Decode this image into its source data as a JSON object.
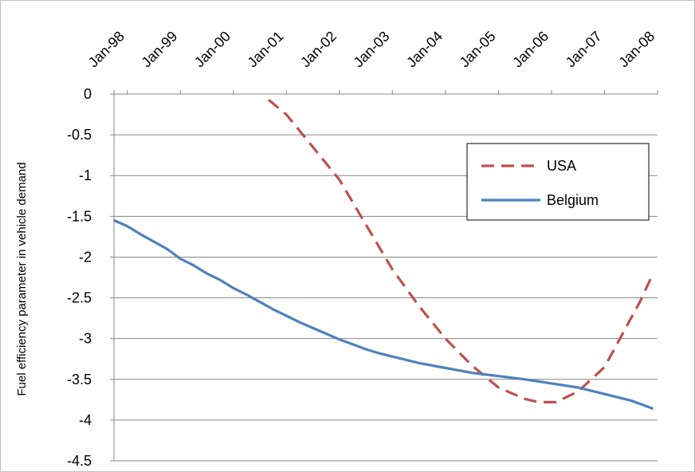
{
  "chart_data": {
    "type": "line",
    "title": "",
    "xlabel": "",
    "ylabel": "Fuel efficiency parameter in vehicle demand",
    "x_tick_labels": [
      "Jan-98",
      "Jan-99",
      "Jan-00",
      "Jan-01",
      "Jan-02",
      "Jan-03",
      "Jan-04",
      "Jan-05",
      "Jan-06",
      "Jan-07",
      "Jan-08"
    ],
    "x_axis_position": "top",
    "xlim": [
      "1997-10",
      "2008-01"
    ],
    "y_tick_labels": [
      "0",
      "-0.5",
      "-1",
      "-1.5",
      "-2",
      "-2.5",
      "-3",
      "-3.5",
      "-4",
      "-4.5"
    ],
    "ylim": [
      -4.5,
      0
    ],
    "grid": "horizontal",
    "legend_position": "right",
    "series": [
      {
        "name": "USA",
        "color": "#c0504d",
        "style": "dashed",
        "points": [
          [
            "2000-09",
            -0.07
          ],
          [
            "2001-01",
            -0.25
          ],
          [
            "2001-04",
            -0.45
          ],
          [
            "2001-07",
            -0.65
          ],
          [
            "2002-01",
            -1.05
          ],
          [
            "2002-07",
            -1.6
          ],
          [
            "2003-01",
            -2.15
          ],
          [
            "2003-07",
            -2.6
          ],
          [
            "2004-01",
            -3.0
          ],
          [
            "2004-07",
            -3.33
          ],
          [
            "2005-01",
            -3.6
          ],
          [
            "2005-07",
            -3.74
          ],
          [
            "2005-10",
            -3.78
          ],
          [
            "2006-02",
            -3.78
          ],
          [
            "2006-07",
            -3.65
          ],
          [
            "2007-01",
            -3.35
          ],
          [
            "2007-05",
            -2.95
          ],
          [
            "2007-09",
            -2.55
          ],
          [
            "2007-12",
            -2.2
          ]
        ]
      },
      {
        "name": "Belgium",
        "color": "#4f81bd",
        "style": "solid",
        "points": [
          [
            "1997-10",
            -1.55
          ],
          [
            "1998-01",
            -1.62
          ],
          [
            "1998-04",
            -1.72
          ],
          [
            "1998-07",
            -1.81
          ],
          [
            "1998-10",
            -1.9
          ],
          [
            "1999-01",
            -2.02
          ],
          [
            "1999-04",
            -2.1
          ],
          [
            "1999-07",
            -2.2
          ],
          [
            "1999-10",
            -2.28
          ],
          [
            "2000-01",
            -2.38
          ],
          [
            "2000-04",
            -2.46
          ],
          [
            "2000-07",
            -2.55
          ],
          [
            "2000-10",
            -2.64
          ],
          [
            "2001-01",
            -2.72
          ],
          [
            "2001-04",
            -2.8
          ],
          [
            "2001-07",
            -2.87
          ],
          [
            "2001-10",
            -2.94
          ],
          [
            "2002-01",
            -3.01
          ],
          [
            "2002-04",
            -3.07
          ],
          [
            "2002-07",
            -3.13
          ],
          [
            "2002-10",
            -3.18
          ],
          [
            "2003-01",
            -3.22
          ],
          [
            "2003-07",
            -3.3
          ],
          [
            "2004-01",
            -3.36
          ],
          [
            "2004-07",
            -3.42
          ],
          [
            "2005-01",
            -3.46
          ],
          [
            "2005-07",
            -3.5
          ],
          [
            "2006-01",
            -3.55
          ],
          [
            "2006-07",
            -3.6
          ],
          [
            "2007-01",
            -3.68
          ],
          [
            "2007-07",
            -3.76
          ],
          [
            "2007-12",
            -3.86
          ]
        ]
      }
    ]
  }
}
